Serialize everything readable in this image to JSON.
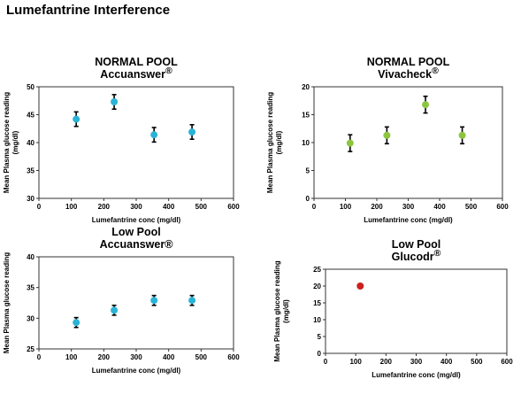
{
  "page": {
    "title": "Lumefantrine Interference"
  },
  "chart_data": [
    {
      "type": "scatter",
      "title": "NORMAL POOL",
      "subtitle": "Accuanswer",
      "subtitle_mark": "®",
      "xlabel": "Lumefantrine conc (mg/dl)",
      "ylabel": "Mean Plasma glucose reading",
      "ylabel2": "(mg/dl)",
      "xlim": [
        0,
        600
      ],
      "ylim": [
        30,
        50
      ],
      "xticks": [
        0,
        100,
        200,
        300,
        400,
        500,
        600
      ],
      "yticks": [
        30,
        35,
        40,
        45,
        50
      ],
      "grid": false,
      "color": "#2bb3d6",
      "x": [
        115,
        232,
        355,
        472
      ],
      "y": [
        44.2,
        47.3,
        41.4,
        41.9
      ],
      "err": [
        1.3,
        1.3,
        1.3,
        1.3
      ]
    },
    {
      "type": "scatter",
      "title": "NORMAL POOL",
      "subtitle": "Vivacheck",
      "subtitle_mark": "®",
      "xlabel": "Lumefantrine conc (mg/dl)",
      "ylabel": "Mean Plasma glucose reading",
      "ylabel2": "(mg/dl)",
      "xlim": [
        0,
        600
      ],
      "ylim": [
        0,
        20
      ],
      "xticks": [
        0,
        100,
        200,
        300,
        400,
        500,
        600
      ],
      "yticks": [
        0,
        5,
        10,
        15,
        20
      ],
      "grid": false,
      "color": "#8cc63f",
      "x": [
        115,
        232,
        355,
        472
      ],
      "y": [
        9.9,
        11.3,
        16.8,
        11.3
      ],
      "err": [
        1.5,
        1.5,
        1.5,
        1.5
      ]
    },
    {
      "type": "scatter",
      "title": "Low Pool",
      "subtitle": "Accuanswer®",
      "subtitle_mark": "",
      "xlabel": "Lumefantrine conc (mg/dl)",
      "ylabel": "Mean Plasma glucose reading",
      "ylabel2": "",
      "xlim": [
        0,
        600
      ],
      "ylim": [
        25,
        40
      ],
      "xticks": [
        0,
        100,
        200,
        300,
        400,
        500,
        600
      ],
      "yticks": [
        25,
        30,
        35,
        40
      ],
      "grid": false,
      "color": "#2bb3d6",
      "x": [
        115,
        232,
        355,
        472
      ],
      "y": [
        29.3,
        31.3,
        32.9,
        32.9
      ],
      "err": [
        0.8,
        0.8,
        0.8,
        0.8
      ]
    },
    {
      "type": "scatter",
      "title": "Low Pool",
      "subtitle": "Glucodr",
      "subtitle_mark": "®",
      "xlabel": "Lumefantrine conc (mg/dl)",
      "ylabel": "Mean Plasma glucose reading",
      "ylabel2": "(mg/dl)",
      "xlim": [
        0,
        600
      ],
      "ylim": [
        0,
        25
      ],
      "xticks": [
        0,
        100,
        200,
        300,
        400,
        500,
        600
      ],
      "yticks": [
        0,
        5,
        10,
        15,
        20,
        25
      ],
      "grid": false,
      "color": "#cc1f1f",
      "x": [
        115
      ],
      "y": [
        20
      ],
      "err": [
        0
      ]
    }
  ]
}
